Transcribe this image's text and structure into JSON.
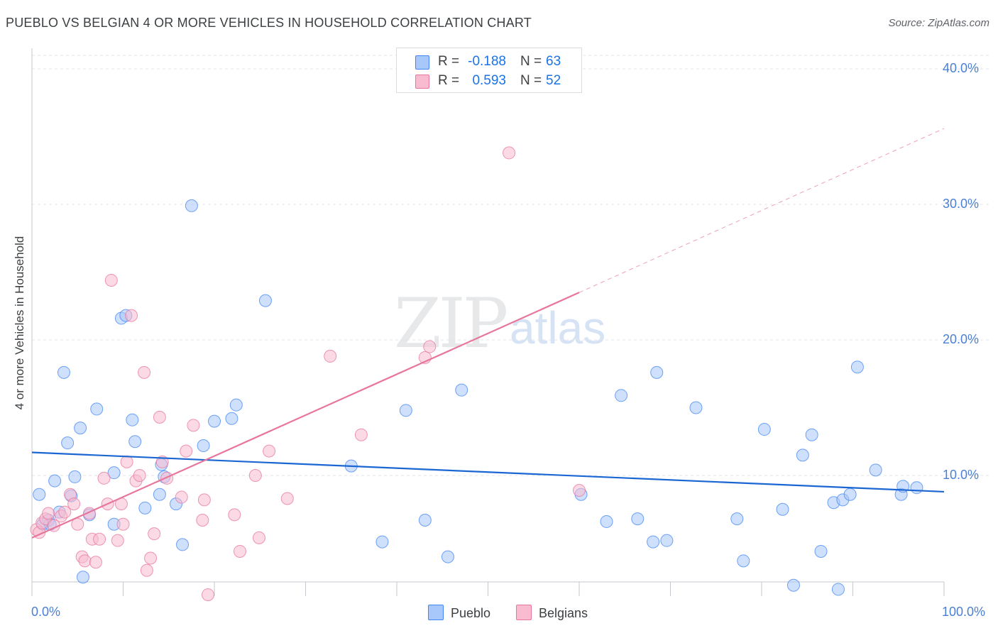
{
  "title": "PUEBLO VS BELGIAN 4 OR MORE VEHICLES IN HOUSEHOLD CORRELATION CHART",
  "source": "Source: ZipAtlas.com",
  "watermark": {
    "zip": "ZIP",
    "atlas": "atlas"
  },
  "stats": {
    "r_label": "R =",
    "n_label": "N =",
    "rows": [
      {
        "series": "Pueblo",
        "r": "-0.188",
        "n": "63",
        "color": "#a8c7fa"
      },
      {
        "series": "Belgians",
        "r": "0.593",
        "n": "52",
        "color": "#f8bbd0"
      }
    ]
  },
  "legend": [
    {
      "label": "Pueblo",
      "color": "#a8c7fa"
    },
    {
      "label": "Belgians",
      "color": "#f8bbd0"
    }
  ],
  "chart_data": {
    "type": "scatter",
    "title": "PUEBLO VS BELGIAN 4 OR MORE VEHICLES IN HOUSEHOLD CORRELATION CHART",
    "xlabel": "",
    "ylabel": "4 or more Vehicles in Household",
    "xlim": [
      0,
      100
    ],
    "ylim": [
      0,
      40
    ],
    "x_tick_labels": [
      "0.0%",
      "100.0%"
    ],
    "y_ticks": [
      10,
      20,
      30,
      40
    ],
    "y_tick_labels": [
      "10.0%",
      "20.0%",
      "30.0%",
      "40.0%"
    ],
    "series": [
      {
        "name": "Pueblo",
        "color": "#4285f4",
        "fill": "#a8c7fa",
        "trend": {
          "x": [
            0,
            100
          ],
          "y": [
            11.7,
            8.8
          ]
        },
        "points": [
          [
            0.8,
            8.6
          ],
          [
            1.2,
            6.4
          ],
          [
            1.8,
            6.7
          ],
          [
            2.0,
            6.4
          ],
          [
            2.5,
            9.6
          ],
          [
            3.0,
            7.3
          ],
          [
            3.5,
            17.6
          ],
          [
            3.9,
            12.4
          ],
          [
            4.3,
            8.5
          ],
          [
            4.7,
            9.9
          ],
          [
            5.3,
            13.5
          ],
          [
            5.6,
            2.5
          ],
          [
            6.3,
            7.1
          ],
          [
            7.1,
            14.9
          ],
          [
            9.0,
            10.2
          ],
          [
            9.0,
            6.4
          ],
          [
            9.8,
            21.6
          ],
          [
            10.3,
            21.8
          ],
          [
            11.0,
            14.1
          ],
          [
            11.3,
            12.5
          ],
          [
            12.4,
            7.6
          ],
          [
            14.0,
            8.6
          ],
          [
            14.2,
            10.8
          ],
          [
            14.5,
            9.9
          ],
          [
            15.8,
            7.9
          ],
          [
            16.5,
            4.9
          ],
          [
            17.5,
            29.9
          ],
          [
            18.8,
            12.2
          ],
          [
            20.0,
            14.0
          ],
          [
            21.9,
            14.2
          ],
          [
            22.4,
            15.2
          ],
          [
            25.6,
            22.9
          ],
          [
            35.0,
            10.7
          ],
          [
            38.4,
            5.1
          ],
          [
            41.0,
            14.8
          ],
          [
            43.1,
            6.7
          ],
          [
            45.6,
            4.0
          ],
          [
            47.1,
            16.3
          ],
          [
            60.2,
            8.6
          ],
          [
            63.0,
            6.6
          ],
          [
            64.6,
            15.9
          ],
          [
            66.4,
            6.8
          ],
          [
            68.1,
            5.1
          ],
          [
            68.5,
            17.6
          ],
          [
            69.6,
            5.2
          ],
          [
            72.8,
            15.0
          ],
          [
            77.3,
            6.8
          ],
          [
            78.0,
            3.7
          ],
          [
            80.3,
            13.4
          ],
          [
            82.3,
            7.5
          ],
          [
            83.5,
            1.9
          ],
          [
            84.5,
            11.5
          ],
          [
            85.5,
            13.0
          ],
          [
            86.5,
            4.4
          ],
          [
            87.9,
            8.0
          ],
          [
            88.4,
            1.6
          ],
          [
            88.9,
            8.2
          ],
          [
            89.7,
            8.6
          ],
          [
            90.5,
            18.0
          ],
          [
            92.5,
            10.4
          ],
          [
            95.3,
            8.6
          ],
          [
            95.5,
            9.2
          ],
          [
            97.0,
            9.1
          ]
        ]
      },
      {
        "name": "Belgians",
        "color": "#e8769a",
        "fill": "#f8bbd0",
        "trend": {
          "x": [
            0,
            60
          ],
          "y": [
            5.4,
            23.5
          ]
        },
        "trend_extension": {
          "x": [
            60,
            100
          ],
          "y": [
            23.5,
            35.6
          ]
        },
        "points": [
          [
            0.5,
            6.0
          ],
          [
            0.8,
            5.8
          ],
          [
            1.1,
            6.5
          ],
          [
            1.5,
            6.8
          ],
          [
            1.8,
            7.2
          ],
          [
            2.4,
            6.3
          ],
          [
            3.2,
            7.0
          ],
          [
            3.6,
            7.3
          ],
          [
            4.2,
            8.6
          ],
          [
            4.6,
            7.9
          ],
          [
            5.0,
            6.4
          ],
          [
            5.5,
            4.0
          ],
          [
            5.8,
            3.7
          ],
          [
            6.3,
            7.2
          ],
          [
            6.6,
            5.3
          ],
          [
            7.0,
            3.6
          ],
          [
            7.4,
            5.3
          ],
          [
            7.9,
            9.8
          ],
          [
            8.3,
            7.9
          ],
          [
            8.7,
            24.4
          ],
          [
            9.4,
            5.2
          ],
          [
            9.8,
            7.9
          ],
          [
            10.0,
            6.4
          ],
          [
            10.4,
            11.0
          ],
          [
            10.9,
            21.8
          ],
          [
            11.4,
            9.6
          ],
          [
            11.8,
            10.0
          ],
          [
            12.3,
            17.6
          ],
          [
            12.6,
            3.0
          ],
          [
            13.0,
            3.9
          ],
          [
            13.4,
            5.7
          ],
          [
            14.0,
            14.3
          ],
          [
            14.3,
            11.0
          ],
          [
            14.8,
            9.8
          ],
          [
            16.4,
            8.4
          ],
          [
            16.9,
            11.8
          ],
          [
            17.7,
            13.7
          ],
          [
            18.7,
            6.7
          ],
          [
            18.9,
            8.2
          ],
          [
            19.3,
            1.2
          ],
          [
            22.2,
            7.1
          ],
          [
            22.8,
            4.4
          ],
          [
            24.5,
            10.0
          ],
          [
            24.9,
            5.4
          ],
          [
            26.0,
            11.8
          ],
          [
            28.0,
            8.3
          ],
          [
            32.7,
            18.8
          ],
          [
            36.1,
            13.0
          ],
          [
            43.1,
            18.7
          ],
          [
            43.6,
            19.5
          ],
          [
            52.3,
            33.8
          ],
          [
            60.0,
            8.9
          ]
        ]
      }
    ]
  }
}
